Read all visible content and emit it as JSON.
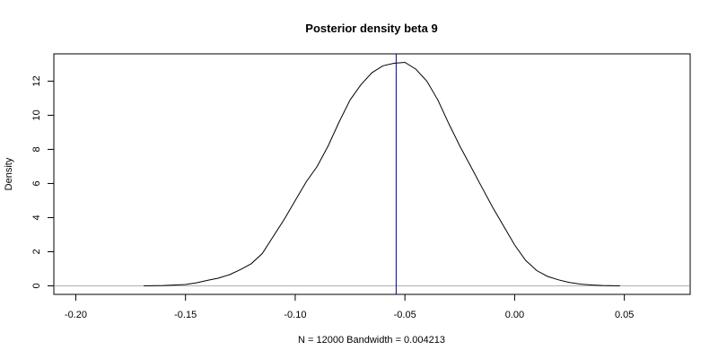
{
  "chart_data": {
    "type": "line",
    "title": "Posterior density beta 9",
    "xlabel": "N = 12000   Bandwidth = 0.004213",
    "ylabel": "Density",
    "xlim": [
      -0.21,
      0.08
    ],
    "ylim": [
      -0.5,
      13.6
    ],
    "x_ticks": [
      -0.2,
      -0.15,
      -0.1,
      -0.05,
      0.0,
      0.05
    ],
    "x_tick_labels": [
      "-0.20",
      "-0.15",
      "-0.10",
      "-0.05",
      "0.00",
      "0.05"
    ],
    "y_ticks": [
      0,
      2,
      4,
      6,
      8,
      10,
      12
    ],
    "y_tick_labels": [
      "0",
      "2",
      "4",
      "6",
      "8",
      "10",
      "12"
    ],
    "grid": false,
    "baseline": {
      "y": 0,
      "color": "#b0b0b0"
    },
    "reference_line": {
      "x": -0.054,
      "color": "#00008b"
    },
    "series": [
      {
        "color": "#000000",
        "x": [
          -0.169,
          -0.16,
          -0.15,
          -0.145,
          -0.14,
          -0.135,
          -0.13,
          -0.125,
          -0.12,
          -0.115,
          -0.11,
          -0.105,
          -0.1,
          -0.095,
          -0.09,
          -0.085,
          -0.08,
          -0.075,
          -0.07,
          -0.065,
          -0.06,
          -0.055,
          -0.05,
          -0.045,
          -0.04,
          -0.035,
          -0.03,
          -0.025,
          -0.02,
          -0.015,
          -0.01,
          -0.005,
          0.0,
          0.005,
          0.01,
          0.015,
          0.02,
          0.025,
          0.03,
          0.035,
          0.04,
          0.048
        ],
        "y": [
          0.0,
          0.02,
          0.08,
          0.18,
          0.32,
          0.45,
          0.65,
          0.95,
          1.3,
          1.9,
          2.9,
          3.9,
          5.0,
          6.1,
          7.0,
          8.2,
          9.6,
          10.9,
          11.8,
          12.5,
          12.9,
          13.05,
          13.1,
          12.7,
          12.0,
          10.9,
          9.5,
          8.2,
          7.0,
          5.8,
          4.6,
          3.5,
          2.4,
          1.5,
          0.9,
          0.55,
          0.35,
          0.2,
          0.1,
          0.05,
          0.02,
          0.0
        ]
      }
    ]
  }
}
